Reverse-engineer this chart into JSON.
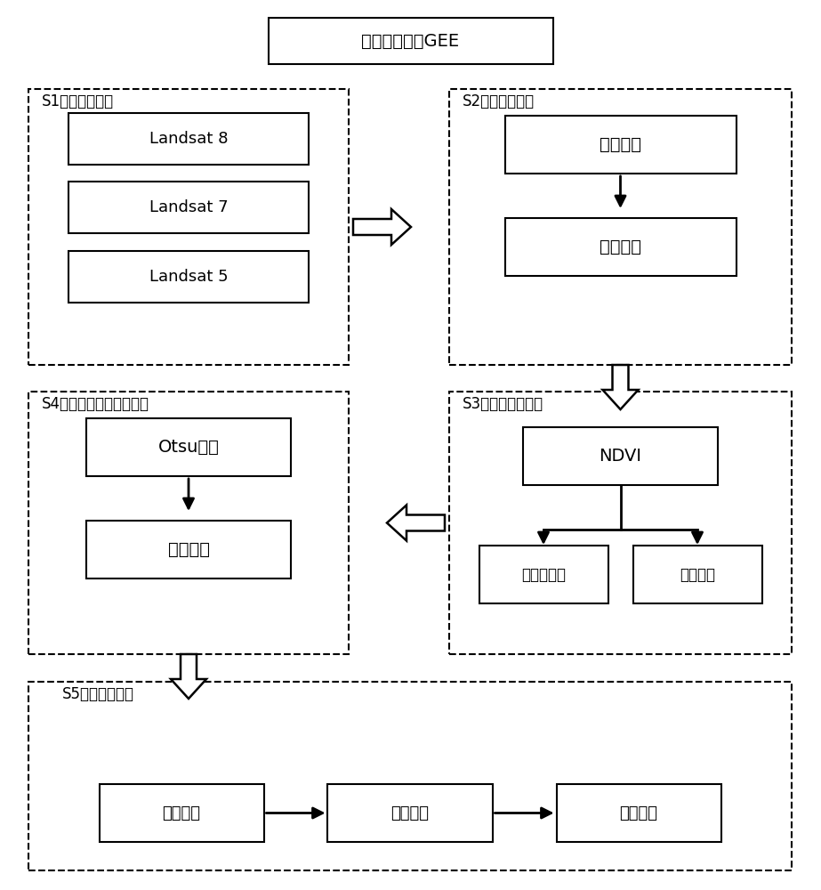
{
  "title": "谷歌地球引擎GEE",
  "bg_color": "#ffffff",
  "box_color": "#ffffff",
  "box_edge_color": "#000000",
  "dashed_edge_color": "#000000",
  "font_color": "#000000",
  "s1_label": "S1、选择数据源",
  "s1_items": [
    "Landsat 8",
    "Landsat 7",
    "Landsat 5"
  ],
  "s2_label": "S2、影像预处理",
  "s2_items": [
    "影像去云",
    "影像融合"
  ],
  "s3_label": "S3、提取植被区域",
  "s3_ndvi": "NDVI",
  "s3_items": [
    "非植被区域",
    "植被区域"
  ],
  "s4_label": "S4、图像分割与边缘检测",
  "s4_items": [
    "Otsu分析",
    "边缘检测"
  ],
  "s5_label": "S5、图像后处理",
  "s5_items": [
    "高程限制",
    "边界清理",
    "质量验证"
  ]
}
